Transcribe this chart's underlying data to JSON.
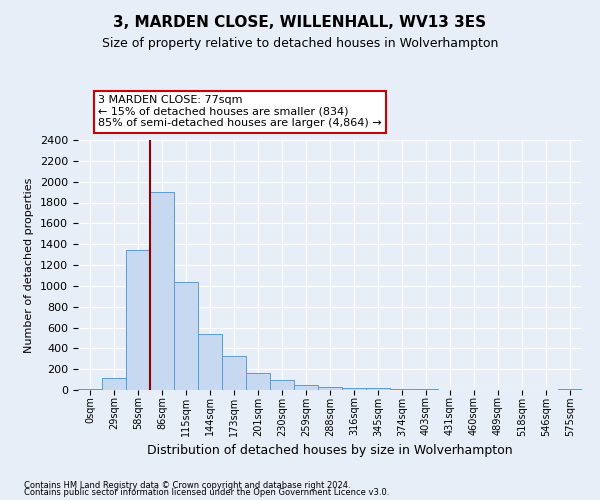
{
  "title": "3, MARDEN CLOSE, WILLENHALL, WV13 3ES",
  "subtitle": "Size of property relative to detached houses in Wolverhampton",
  "xlabel": "Distribution of detached houses by size in Wolverhampton",
  "ylabel": "Number of detached properties",
  "footnote1": "Contains HM Land Registry data © Crown copyright and database right 2024.",
  "footnote2": "Contains public sector information licensed under the Open Government Licence v3.0.",
  "bar_labels": [
    "0sqm",
    "29sqm",
    "58sqm",
    "86sqm",
    "115sqm",
    "144sqm",
    "173sqm",
    "201sqm",
    "230sqm",
    "259sqm",
    "288sqm",
    "316sqm",
    "345sqm",
    "374sqm",
    "403sqm",
    "431sqm",
    "460sqm",
    "489sqm",
    "518sqm",
    "546sqm",
    "575sqm"
  ],
  "bar_heights": [
    10,
    120,
    1340,
    1900,
    1040,
    540,
    330,
    165,
    100,
    50,
    30,
    22,
    15,
    10,
    5,
    2,
    2,
    2,
    1,
    0,
    5
  ],
  "bar_color": "#c6d9f0",
  "bar_edge_color": "#5b9bd5",
  "annotation_text1": "3 MARDEN CLOSE: 77sqm",
  "annotation_text2": "← 15% of detached houses are smaller (834)",
  "annotation_text3": "85% of semi-detached houses are larger (4,864) →",
  "vline_color": "#8b0000",
  "annotation_box_facecolor": "#ffffff",
  "annotation_box_edgecolor": "#cc0000",
  "background_color": "#e8eef7",
  "ylim": [
    0,
    2400
  ],
  "grid_color": "#ffffff",
  "title_fontsize": 11,
  "subtitle_fontsize": 9,
  "ylabel_fontsize": 8,
  "xlabel_fontsize": 9,
  "ytick_fontsize": 8,
  "xtick_fontsize": 7,
  "footnote_fontsize": 6
}
